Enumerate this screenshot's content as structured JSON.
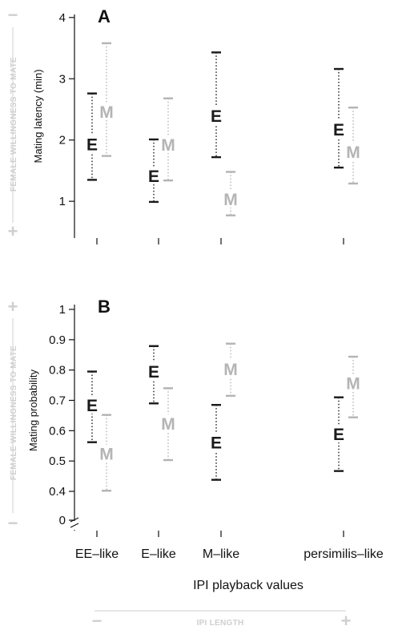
{
  "chart_data": [
    {
      "panel": "A",
      "type": "errorbar",
      "ylabel": "Mating latency (min)",
      "ylim": [
        0.4,
        4.05
      ],
      "yticks": [
        1,
        2,
        3,
        4
      ],
      "side_label": {
        "text": "FEMALE WILLINGNESS TO MATE",
        "top_sign": "−",
        "bottom_sign": "+"
      },
      "categories": [
        "EE–like",
        "E–like",
        "M–like",
        "persimilis–like"
      ],
      "series": [
        {
          "name": "E",
          "color": "#1a1a1a",
          "values": [
            1.94,
            1.42,
            2.4,
            2.18
          ],
          "lower": [
            1.35,
            0.99,
            1.72,
            1.55
          ],
          "upper": [
            2.76,
            2.01,
            3.43,
            3.16
          ]
        },
        {
          "name": "M",
          "color": "#b4b4b4",
          "values": [
            2.47,
            1.93,
            1.04,
            1.81
          ],
          "lower": [
            1.74,
            1.34,
            0.77,
            1.29
          ],
          "upper": [
            3.58,
            2.68,
            1.48,
            2.53
          ]
        }
      ]
    },
    {
      "panel": "B",
      "type": "errorbar",
      "ylabel": "Mating probability",
      "ylim": [
        0.37,
        1.0
      ],
      "yticks": [
        "1",
        "0.9",
        "0.8",
        "0.7",
        "0.6",
        "0.5",
        "0.4",
        "0"
      ],
      "axis_break": true,
      "side_label": {
        "text": "FEMALE WILLINGNESS TO MATE",
        "top_sign": "+",
        "bottom_sign": "−"
      },
      "categories": [
        "EE–like",
        "E–like",
        "M–like",
        "persimilis–like"
      ],
      "series": [
        {
          "name": "E",
          "color": "#1a1a1a",
          "values": [
            0.685,
            0.797,
            0.562,
            0.59
          ],
          "lower": [
            0.562,
            0.69,
            0.438,
            0.467
          ],
          "upper": [
            0.795,
            0.879,
            0.685,
            0.71
          ]
        },
        {
          "name": "M",
          "color": "#b4b4b4",
          "values": [
            0.525,
            0.625,
            0.805,
            0.758
          ],
          "lower": [
            0.402,
            0.503,
            0.715,
            0.644
          ],
          "upper": [
            0.652,
            0.74,
            0.887,
            0.844
          ]
        }
      ]
    }
  ],
  "xaxis": {
    "title": "IPI playback values",
    "categories": [
      "EE–like",
      "E–like",
      "M–like",
      "persimilis–like"
    ]
  },
  "bottom_scale": {
    "label": "IPI LENGTH",
    "left_sign": "−",
    "right_sign": "+"
  }
}
